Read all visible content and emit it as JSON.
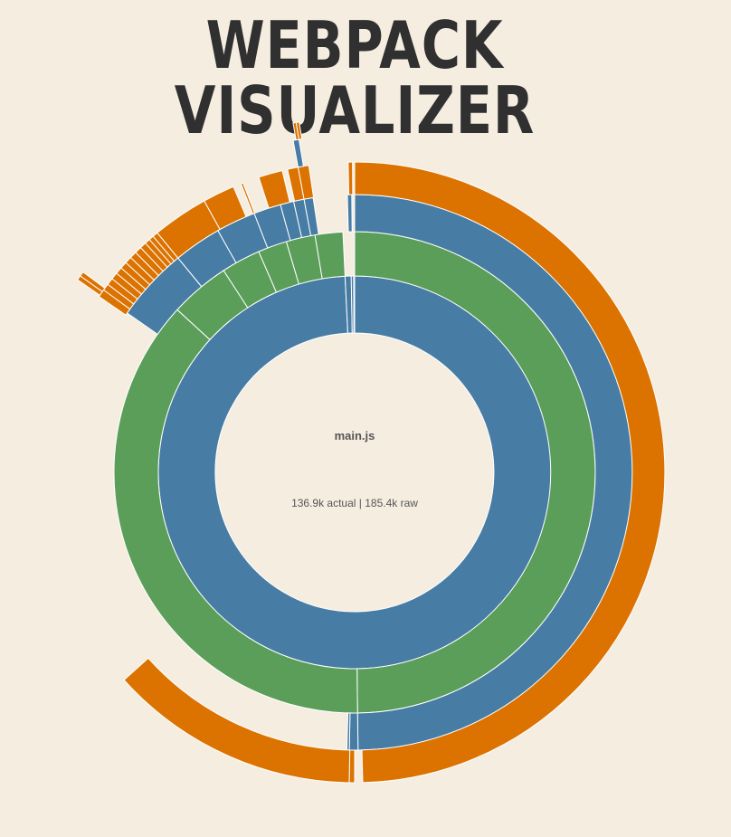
{
  "header": {
    "title": "WEBPACK VISUALIZER"
  },
  "center": {
    "name": "main.js",
    "size": "136.9k actual | 185.4k raw"
  },
  "colors": {
    "background": "#f6ede1",
    "level1": "#477ca4",
    "level2": "#5a9e5a",
    "level3": "#477ca4",
    "level4": "#dc7300",
    "separator": "#ffffff",
    "title": "#303030"
  },
  "chart_data": {
    "type": "sunburst",
    "root": "main.js",
    "rings": [
      {
        "depth": 1,
        "color": "level1",
        "segments": [
          {
            "start": 0,
            "end": 357.2
          },
          {
            "start": 357.2,
            "end": 359.0
          },
          {
            "start": 359.0,
            "end": 359.7
          },
          {
            "start": 359.7,
            "end": 360
          }
        ]
      },
      {
        "depth": 2,
        "color": "level2",
        "segments": [
          {
            "start": 0,
            "end": 179.3
          },
          {
            "start": 179.3,
            "end": 312.5
          },
          {
            "start": 312.5,
            "end": 327.0
          },
          {
            "start": 327.0,
            "end": 336.5
          },
          {
            "start": 336.5,
            "end": 343.5
          },
          {
            "start": 343.5,
            "end": 350.5
          },
          {
            "start": 350.5,
            "end": 357.2
          }
        ]
      },
      {
        "depth": 3,
        "color": "level3",
        "segments": [
          {
            "start": 0,
            "end": 179.3
          },
          {
            "start": 179.3,
            "end": 181.1
          },
          {
            "start": 181.1,
            "end": 181.6
          },
          {
            "start": 305.0,
            "end": 320.5
          },
          {
            "start": 320.5,
            "end": 330.5
          },
          {
            "start": 330.5,
            "end": 338.8
          },
          {
            "start": 338.8,
            "end": 344.5
          },
          {
            "start": 344.5,
            "end": 347.3
          },
          {
            "start": 347.3,
            "end": 349.5
          },
          {
            "start": 349.5,
            "end": 351.4
          },
          {
            "start": 358.5,
            "end": 359.4
          }
        ]
      },
      {
        "depth": 4,
        "color": "level4",
        "segments": [
          {
            "start": 0,
            "end": 178.5
          },
          {
            "start": 180.0,
            "end": 181.0
          },
          {
            "start": 181.0,
            "end": 228.0
          },
          {
            "start": 304.5,
            "end": 306.0
          },
          {
            "start": 306.0,
            "end": 307.3
          },
          {
            "start": 307.3,
            "end": 308.6
          },
          {
            "start": 308.6,
            "end": 309.9
          },
          {
            "start": 309.9,
            "end": 311.2
          },
          {
            "start": 311.2,
            "end": 312.5
          },
          {
            "start": 312.5,
            "end": 313.8
          },
          {
            "start": 313.8,
            "end": 315.1
          },
          {
            "start": 315.1,
            "end": 316.4
          },
          {
            "start": 316.4,
            "end": 317.6
          },
          {
            "start": 317.6,
            "end": 318.6
          },
          {
            "start": 318.6,
            "end": 319.5
          },
          {
            "start": 319.5,
            "end": 320.5
          },
          {
            "start": 320.5,
            "end": 331.0
          },
          {
            "start": 331.0,
            "end": 337.0
          },
          {
            "start": 338.5,
            "end": 338.9
          },
          {
            "start": 342.0,
            "end": 346.5
          },
          {
            "start": 347.5,
            "end": 349.5
          },
          {
            "start": 349.5,
            "end": 351.5
          },
          {
            "start": 358.8,
            "end": 359.6
          }
        ]
      },
      {
        "depth": 5,
        "color": "level4",
        "segments": [
          {
            "start": 304.8,
            "end": 305.6
          },
          {
            "start": 305.6,
            "end": 306.4
          }
        ]
      },
      {
        "depth": 5,
        "color": "level3",
        "segments": [
          {
            "start": 349.5,
            "end": 350.5
          }
        ]
      },
      {
        "depth": 6,
        "color": "level4",
        "segments": [
          {
            "start": 350.0,
            "end": 350.5
          },
          {
            "start": 350.5,
            "end": 351.0
          }
        ]
      }
    ]
  }
}
